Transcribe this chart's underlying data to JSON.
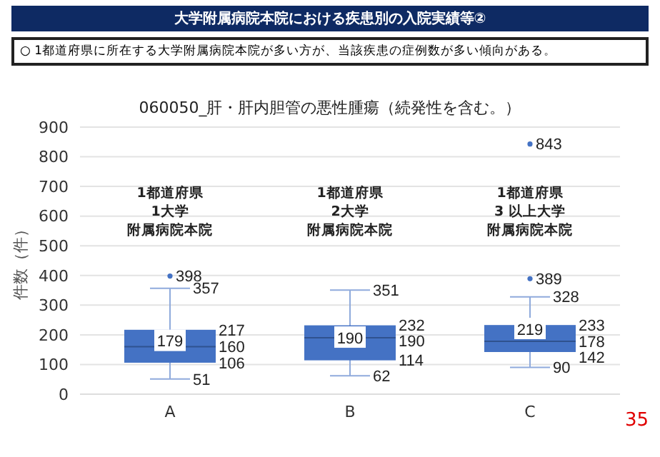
{
  "chart_data": {
    "type": "box",
    "title": "大学附属病院本院における疾患別の入院実績等②",
    "subtitle": "060050_肝・肝内胆管の悪性腫瘍（続発性を含む。）",
    "ylabel": "件数（件）",
    "categories": [
      "A",
      "B",
      "C"
    ],
    "series": [
      {
        "color": "#4472c4",
        "boxes": [
          {
            "low": 51,
            "q1": 106,
            "median": 160,
            "q3": 217,
            "high": 357,
            "mean": 179,
            "outliers": [
              398
            ]
          },
          {
            "low": 62,
            "q1": 114,
            "median": 190,
            "q3": 232,
            "high": 351,
            "mean": 190
          },
          {
            "low": 90,
            "q1": 142,
            "median": 178,
            "q3": 233,
            "high": 328,
            "mean": 219,
            "outliers": [
              389,
              843
            ]
          }
        ]
      }
    ],
    "ylim": [
      0,
      900
    ],
    "yticks": [
      0,
      100,
      200,
      300,
      400,
      500,
      600,
      700,
      800,
      900
    ],
    "grid": "y",
    "annotations": [
      "○ 1都道府県に所在する大学附属病院本院が多い方が、当該疾患の症例数が多い傾向がある。",
      "1都道府県",
      "1大学",
      "附属病院本院",
      "1都道府県",
      "2大学",
      "附属病院本院",
      "1都道府県",
      "3 以上大学",
      "附属病院本院",
      "398",
      "217",
      "160",
      "106",
      "232",
      "190",
      "114",
      "389",
      "843",
      "233",
      "178",
      "142",
      {
        "text": "357",
        "x": "A",
        "y": 357
      },
      {
        "text": "179",
        "x": "A",
        "y": 179
      },
      {
        "text": "51",
        "x": "A",
        "y": 51
      },
      {
        "text": "351",
        "x": "B",
        "y": 351
      },
      {
        "text": "190",
        "x": "B",
        "y": 190
      },
      {
        "text": "62",
        "x": "B",
        "y": 62
      },
      {
        "text": "328",
        "x": "C",
        "y": 328
      },
      {
        "text": "219",
        "x": "C",
        "y": 219
      },
      {
        "text": "90",
        "x": "C",
        "y": 90
      },
      "35"
    ]
  }
}
